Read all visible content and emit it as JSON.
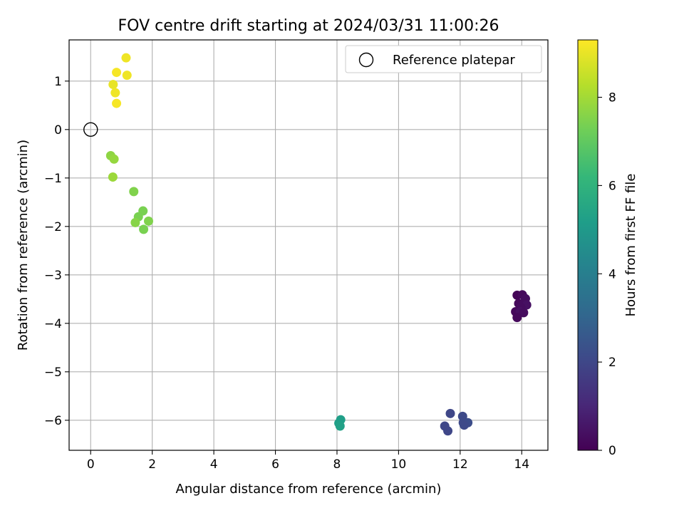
{
  "chart_data": {
    "type": "scatter",
    "title": "FOV centre drift starting at 2024/03/31 11:00:26",
    "xlabel": "Angular distance from reference (arcmin)",
    "ylabel": "Rotation from reference (arcmin)",
    "xlim": [
      -0.7,
      14.85
    ],
    "ylim": [
      -6.62,
      1.85
    ],
    "xticks": [
      0,
      2,
      4,
      6,
      8,
      10,
      12,
      14
    ],
    "yticks": [
      1,
      0,
      -1,
      -2,
      -3,
      -4,
      -5,
      -6
    ],
    "grid": true,
    "legend": {
      "placement": "top-right",
      "entries": [
        "Reference platepar"
      ]
    },
    "reference_point": {
      "x": 0,
      "y": 0,
      "label": "Reference platepar"
    },
    "colorbar": {
      "label": "Hours from first FF file",
      "range": [
        0,
        9.3
      ],
      "ticks": [
        0,
        2,
        4,
        6,
        8
      ],
      "colormap": "viridis"
    },
    "series": [
      {
        "points": [
          {
            "x": 13.85,
            "y": -3.42,
            "c": 0.1
          },
          {
            "x": 14.02,
            "y": -3.41,
            "c": 0.2
          },
          {
            "x": 14.12,
            "y": -3.49,
            "c": 0.3
          },
          {
            "x": 13.9,
            "y": -3.59,
            "c": 0.2
          },
          {
            "x": 14.05,
            "y": -3.6,
            "c": 0.3
          },
          {
            "x": 14.16,
            "y": -3.62,
            "c": 0.4
          },
          {
            "x": 13.97,
            "y": -3.67,
            "c": 0.3
          },
          {
            "x": 13.8,
            "y": -3.76,
            "c": 0.2
          },
          {
            "x": 13.95,
            "y": -3.76,
            "c": 0.4
          },
          {
            "x": 14.06,
            "y": -3.78,
            "c": 0.3
          },
          {
            "x": 13.85,
            "y": -3.88,
            "c": 0.2
          },
          {
            "x": 11.68,
            "y": -5.86,
            "c": 2.0
          },
          {
            "x": 12.08,
            "y": -5.92,
            "c": 2.1
          },
          {
            "x": 12.1,
            "y": -6.05,
            "c": 2.1
          },
          {
            "x": 12.25,
            "y": -6.05,
            "c": 2.2
          },
          {
            "x": 11.5,
            "y": -6.12,
            "c": 2.0
          },
          {
            "x": 12.13,
            "y": -6.1,
            "c": 2.1
          },
          {
            "x": 11.6,
            "y": -6.22,
            "c": 2.0
          },
          {
            "x": 8.12,
            "y": -5.99,
            "c": 5.2
          },
          {
            "x": 8.06,
            "y": -6.06,
            "c": 5.2
          },
          {
            "x": 8.1,
            "y": -6.12,
            "c": 5.3
          },
          {
            "x": 1.4,
            "y": -1.28,
            "c": 7.5
          },
          {
            "x": 1.7,
            "y": -1.68,
            "c": 7.4
          },
          {
            "x": 1.55,
            "y": -1.8,
            "c": 7.4
          },
          {
            "x": 1.88,
            "y": -1.89,
            "c": 7.5
          },
          {
            "x": 1.45,
            "y": -1.92,
            "c": 7.6
          },
          {
            "x": 1.72,
            "y": -2.06,
            "c": 7.4
          },
          {
            "x": 0.65,
            "y": -0.54,
            "c": 7.7
          },
          {
            "x": 0.76,
            "y": -0.61,
            "c": 7.8
          },
          {
            "x": 0.72,
            "y": -0.98,
            "c": 7.9
          },
          {
            "x": 1.15,
            "y": 1.48,
            "c": 9.1
          },
          {
            "x": 0.84,
            "y": 1.18,
            "c": 9.2
          },
          {
            "x": 1.18,
            "y": 1.12,
            "c": 9.1
          },
          {
            "x": 0.73,
            "y": 0.93,
            "c": 9.0
          },
          {
            "x": 0.8,
            "y": 0.76,
            "c": 9.1
          },
          {
            "x": 0.84,
            "y": 0.54,
            "c": 9.2
          }
        ]
      }
    ]
  }
}
